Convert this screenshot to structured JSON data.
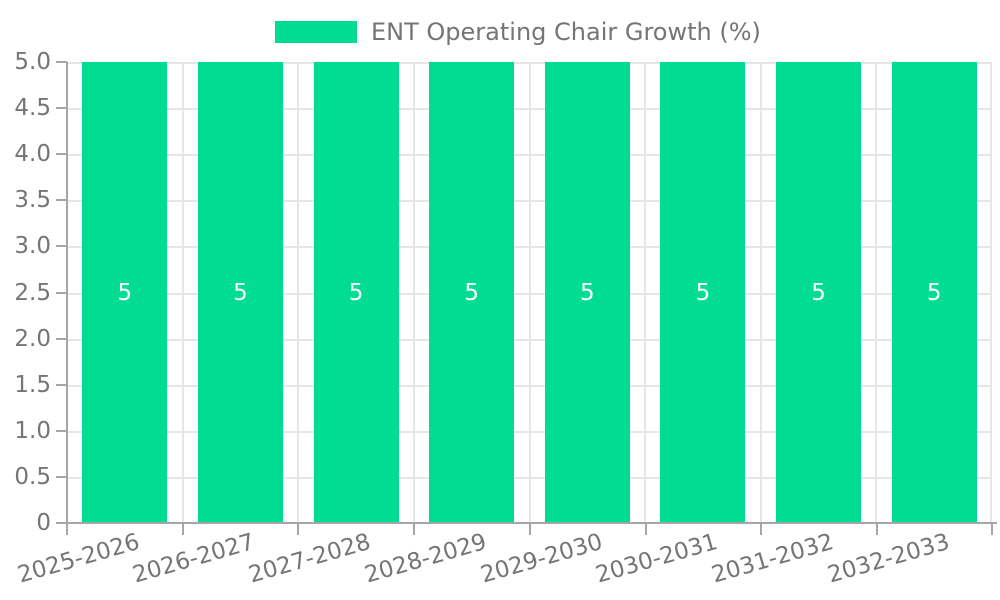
{
  "chart_data": {
    "type": "bar",
    "title": "ENT Operating Chair Growth (%)",
    "legend": {
      "position": "top-center",
      "entries": [
        {
          "label": "ENT Operating Chair Growth (%)",
          "color": "#00DC91"
        }
      ]
    },
    "categories": [
      "2025-2026",
      "2026-2027",
      "2027-2028",
      "2028-2029",
      "2029-2030",
      "2030-2031",
      "2031-2032",
      "2032-2033"
    ],
    "values": [
      5,
      5,
      5,
      5,
      5,
      5,
      5,
      5
    ],
    "xlabel": "",
    "ylabel": "",
    "ylim": [
      0,
      5
    ],
    "ytick_labels": [
      "5.0",
      "4.5",
      "4.0",
      "3.5",
      "3.0",
      "2.5",
      "2.0",
      "1.5",
      "1.0",
      "0.5",
      "0"
    ],
    "grid": true,
    "colors": {
      "bar": "#00DC91",
      "bar_value_text": "#ffffff",
      "axis": "#a6a6a6",
      "gridline": "#e6e6e6",
      "text": "#757575",
      "background": "#ffffff"
    }
  }
}
